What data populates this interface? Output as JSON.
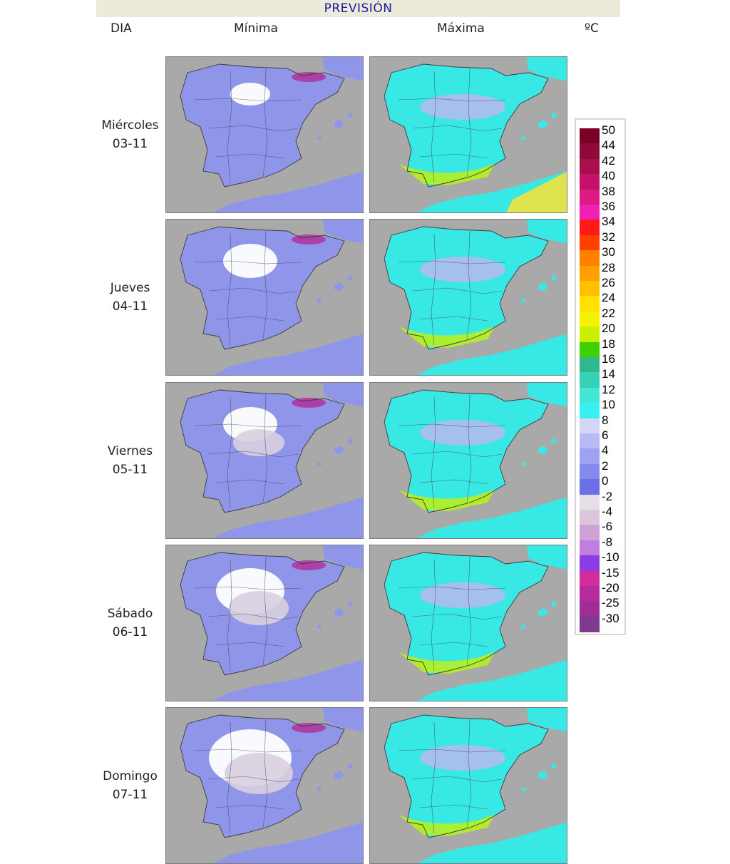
{
  "header": {
    "title": "PREVISIÓN"
  },
  "columns": {
    "day": "DIA",
    "min": "Mínima",
    "max": "Máxima",
    "unit": "ºC"
  },
  "days": [
    {
      "weekday": "Miércoles",
      "date": "03-11"
    },
    {
      "weekday": "Jueves",
      "date": "04-11"
    },
    {
      "weekday": "Viernes",
      "date": "05-11"
    },
    {
      "weekday": "Sábado",
      "date": "06-11"
    },
    {
      "weekday": "Domingo",
      "date": "07-11"
    }
  ],
  "legend": {
    "labels": [
      "50",
      "44",
      "42",
      "40",
      "38",
      "36",
      "34",
      "32",
      "30",
      "28",
      "26",
      "24",
      "22",
      "20",
      "18",
      "16",
      "14",
      "12",
      "10",
      "8",
      "6",
      "4",
      "2",
      "0",
      "-2",
      "-4",
      "-6",
      "-8",
      "-10",
      "-15",
      "-20",
      "-25",
      "-30"
    ],
    "colors": [
      "#7a0026",
      "#8e0a3a",
      "#a8104c",
      "#c4126a",
      "#dd1a86",
      "#f020b4",
      "#ff1a1a",
      "#ff4000",
      "#ff7f00",
      "#ffa000",
      "#ffc000",
      "#ffe000",
      "#f4f400",
      "#c8f000",
      "#3ed000",
      "#2fb88c",
      "#36d1b7",
      "#44e6d6",
      "#38f0f0",
      "#d4d6f8",
      "#b8baf4",
      "#9ea2f0",
      "#8489ec",
      "#6a70e8",
      "#e6e0e6",
      "#dcc6dc",
      "#cfa2d6",
      "#c07ee0",
      "#8c3ce4",
      "#d02c9c",
      "#b62c9e",
      "#a02c98",
      "#7e3a8e"
    ]
  },
  "map_palette": {
    "sea": "#a9a9a9",
    "min_land": "#8f96ea",
    "max_land": "#38e8e4",
    "snow": "#ffffff",
    "frost": "#d8cfe0",
    "deep_frost": "#b0329c",
    "warm": "#b6f020",
    "border": "#3a3a3a"
  }
}
